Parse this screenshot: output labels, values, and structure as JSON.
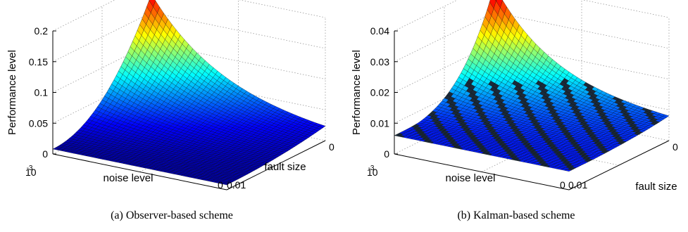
{
  "chart_data": [
    {
      "type": "surface",
      "caption": "(a) Observer-based scheme",
      "xlabel": "noise level",
      "ylabel": "fault size",
      "zlabel": "Performance level",
      "x_ticks": [
        {
          "base": "10",
          "exp": "-3"
        },
        {
          "base": "0",
          "exp": ""
        }
      ],
      "y_ticks": [
        "0",
        "0.01"
      ],
      "z_ticks": [
        "0",
        "0.05",
        "0.1",
        "0.15",
        "0.2"
      ],
      "zlim": [
        0,
        0.2
      ],
      "grid": true,
      "colormap": "jet",
      "surface_peak": 0.18,
      "surface_floor": 0.008
    },
    {
      "type": "surface",
      "caption": "(b) Kalman-based scheme",
      "xlabel": "noise level",
      "ylabel": "fault size",
      "zlabel": "Performance level",
      "x_ticks": [
        {
          "base": "10",
          "exp": "-3"
        },
        {
          "base": "0",
          "exp": ""
        }
      ],
      "y_ticks": [
        "0",
        "0.01"
      ],
      "z_ticks": [
        "0",
        "0.01",
        "0.02",
        "0.03",
        "0.04"
      ],
      "zlim": [
        0,
        0.04
      ],
      "grid": true,
      "colormap": "jet",
      "surface_peak": 0.036,
      "surface_floor": 0.006
    }
  ]
}
